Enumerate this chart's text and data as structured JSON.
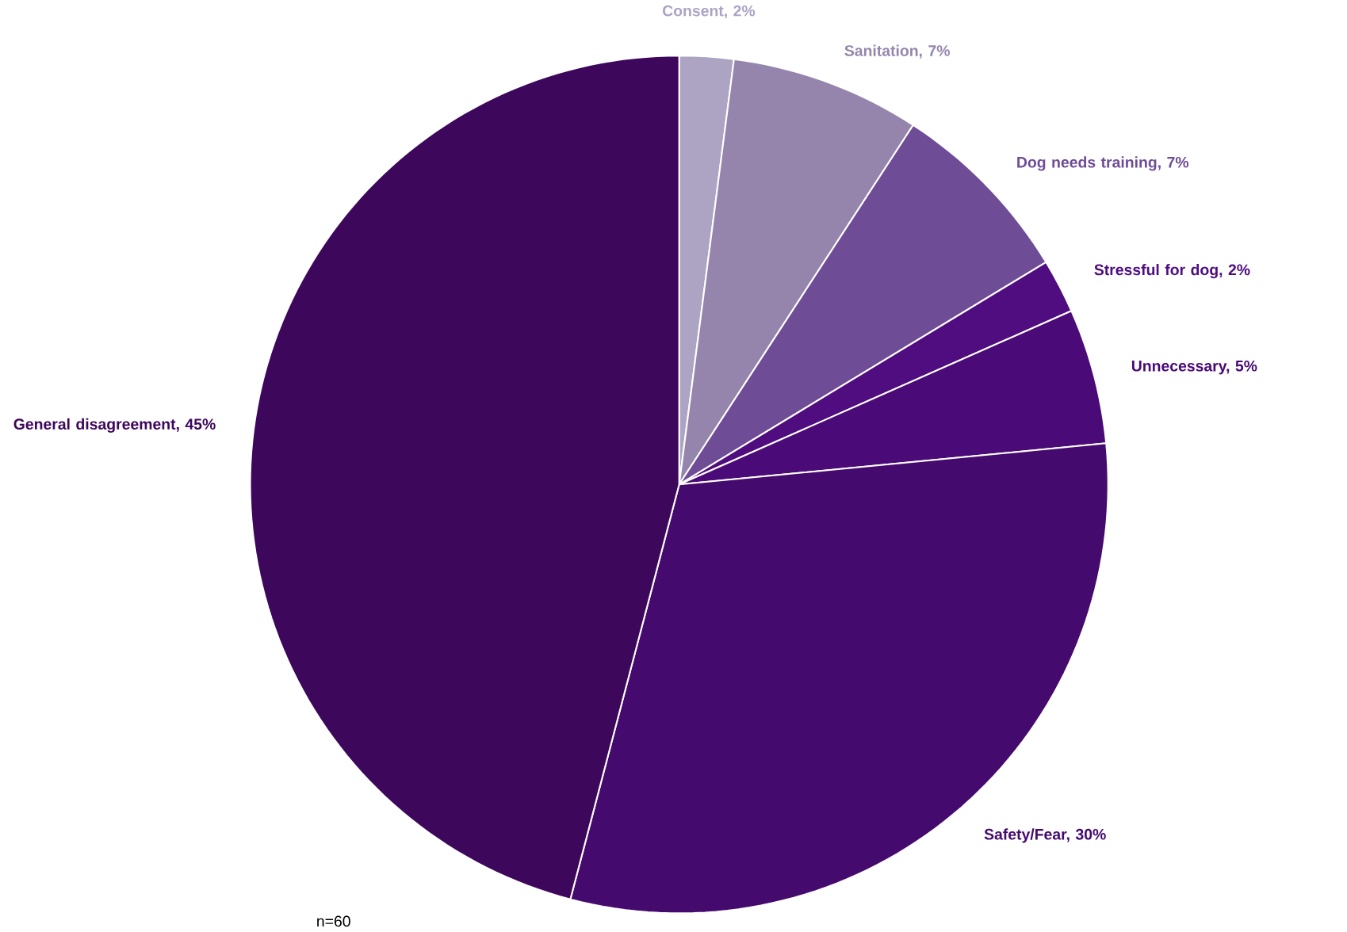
{
  "chart_data": {
    "type": "pie",
    "categories": [
      "Consent, 2%",
      "Sanitation, 7%",
      "Dog needs training, 7%",
      "Stressful for dog, 2%",
      "Unnecessary, 5%",
      "Safety/Fear, 30%",
      "General disagreement, 45%"
    ],
    "values": [
      2,
      7,
      7,
      2,
      5,
      30,
      45
    ],
    "colors": [
      "#ada3c3",
      "#9585ad",
      "#6e4c96",
      "#4f0d80",
      "#4a0a78",
      "#450a6e",
      "#3d075c"
    ],
    "annotations": [
      "n=60"
    ]
  }
}
